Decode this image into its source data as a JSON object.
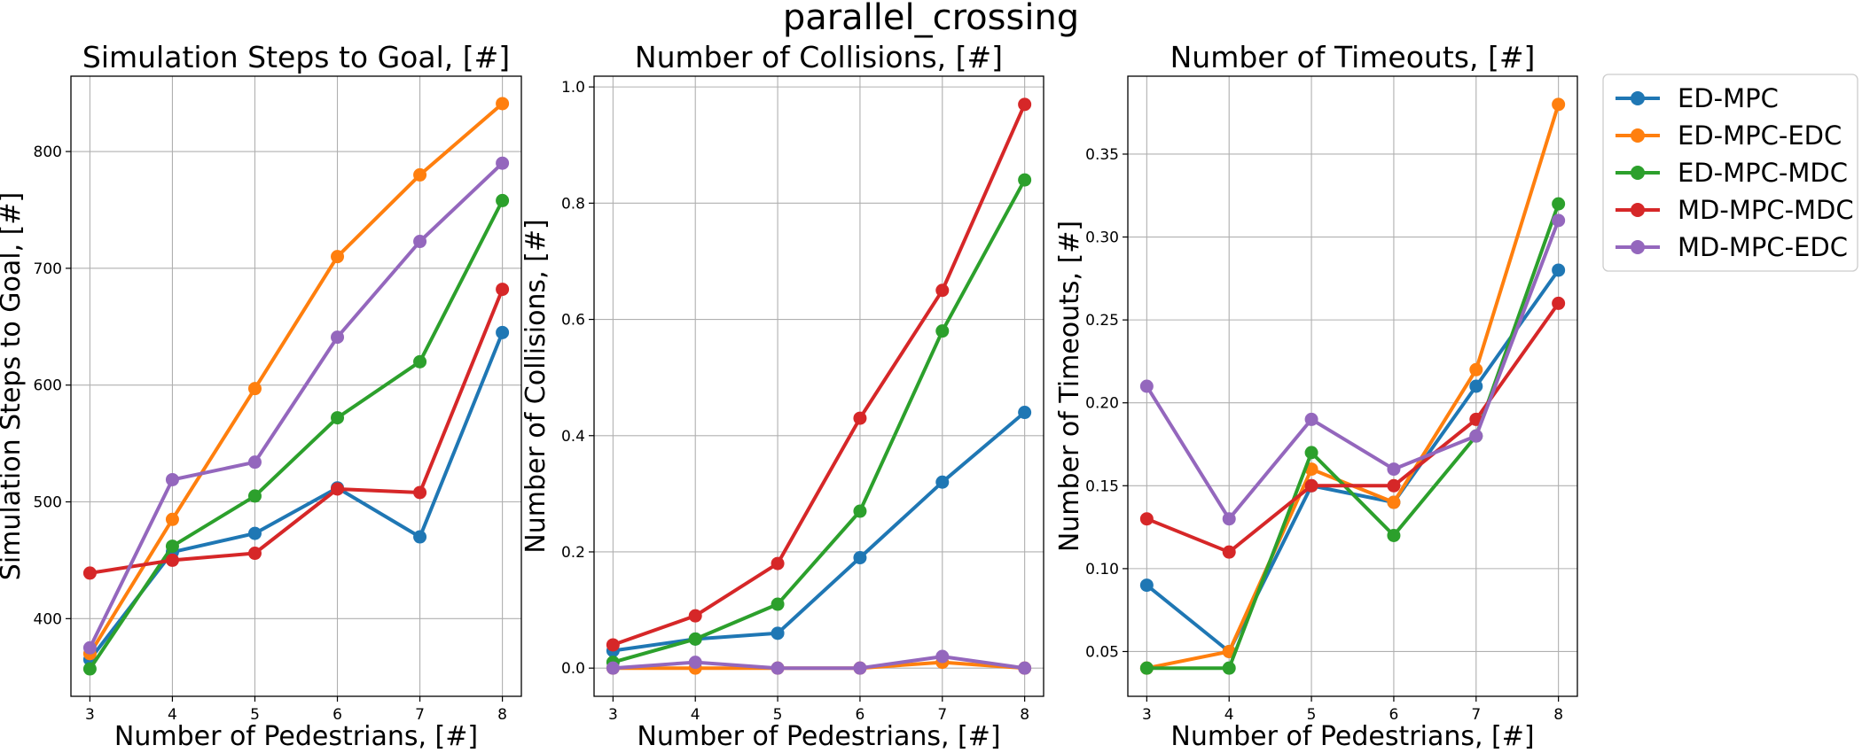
{
  "figure_title": "parallel_crossing",
  "colors": {
    "ED-MPC": "#1f77b4",
    "ED-MPC-EDC": "#ff7f0e",
    "ED-MPC-MDC": "#2ca02c",
    "MD-MPC-MDC": "#d62728",
    "MD-MPC-EDC": "#9467bd"
  },
  "legend": {
    "placement": "outside-top-right",
    "entries": [
      "ED-MPC",
      "ED-MPC-EDC",
      "ED-MPC-MDC",
      "MD-MPC-MDC",
      "MD-MPC-EDC"
    ]
  },
  "chart_data": [
    {
      "type": "line",
      "title": "Simulation Steps to Goal, [#]",
      "xlabel": "Number of Pedestrians, [#]",
      "ylabel": "Simulation Steps to Goal, [#]",
      "x": [
        3,
        4,
        5,
        6,
        7,
        8
      ],
      "xlim": [
        2.77,
        8.23
      ],
      "ylim": [
        333.5,
        864.5
      ],
      "yticks": [
        400,
        500,
        600,
        700,
        800
      ],
      "ytick_labels": [
        "400",
        "500",
        "600",
        "700",
        "800"
      ],
      "grid": true,
      "series": [
        {
          "name": "ED-MPC",
          "values": [
            365,
            457,
            473,
            512,
            470,
            645
          ]
        },
        {
          "name": "ED-MPC-EDC",
          "values": [
            370,
            485,
            597,
            710,
            780,
            841
          ]
        },
        {
          "name": "ED-MPC-MDC",
          "values": [
            357,
            462,
            505,
            572,
            620,
            758
          ]
        },
        {
          "name": "MD-MPC-MDC",
          "values": [
            439,
            450,
            456,
            511,
            508,
            682
          ]
        },
        {
          "name": "MD-MPC-EDC",
          "values": [
            375,
            519,
            534,
            641,
            723,
            790
          ]
        }
      ]
    },
    {
      "type": "line",
      "title": "Number of Collisions, [#]",
      "xlabel": "Number of Pedestrians, [#]",
      "ylabel": "Number of Collisions, [#]",
      "x": [
        3,
        4,
        5,
        6,
        7,
        8
      ],
      "xlim": [
        2.77,
        8.23
      ],
      "ylim": [
        -0.0485,
        1.0185
      ],
      "yticks": [
        0.0,
        0.2,
        0.4,
        0.6,
        0.8,
        1.0
      ],
      "ytick_labels": [
        "0.0",
        "0.2",
        "0.4",
        "0.6",
        "0.8",
        "1.0"
      ],
      "grid": true,
      "series": [
        {
          "name": "ED-MPC",
          "values": [
            0.03,
            0.05,
            0.06,
            0.19,
            0.32,
            0.44
          ]
        },
        {
          "name": "ED-MPC-EDC",
          "values": [
            0.0,
            0.0,
            0.0,
            0.0,
            0.01,
            0.0
          ]
        },
        {
          "name": "ED-MPC-MDC",
          "values": [
            0.01,
            0.05,
            0.11,
            0.27,
            0.58,
            0.84
          ]
        },
        {
          "name": "MD-MPC-MDC",
          "values": [
            0.04,
            0.09,
            0.18,
            0.43,
            0.65,
            0.97
          ]
        },
        {
          "name": "MD-MPC-EDC",
          "values": [
            0.0,
            0.01,
            0.0,
            0.0,
            0.02,
            0.0
          ]
        }
      ]
    },
    {
      "type": "line",
      "title": "Number of Timeouts, [#]",
      "xlabel": "Number of Pedestrians, [#]",
      "ylabel": "Number of Timeouts, [#]",
      "x": [
        3,
        4,
        5,
        6,
        7,
        8
      ],
      "xlim": [
        2.77,
        8.23
      ],
      "ylim": [
        0.023,
        0.397
      ],
      "yticks": [
        0.05,
        0.1,
        0.15,
        0.2,
        0.25,
        0.3,
        0.35
      ],
      "ytick_labels": [
        "0.05",
        "0.10",
        "0.15",
        "0.20",
        "0.25",
        "0.30",
        "0.35"
      ],
      "grid": true,
      "series": [
        {
          "name": "ED-MPC",
          "values": [
            0.09,
            0.05,
            0.15,
            0.14,
            0.21,
            0.28
          ]
        },
        {
          "name": "ED-MPC-EDC",
          "values": [
            0.04,
            0.05,
            0.16,
            0.14,
            0.22,
            0.38
          ]
        },
        {
          "name": "ED-MPC-MDC",
          "values": [
            0.04,
            0.04,
            0.17,
            0.12,
            0.18,
            0.32
          ]
        },
        {
          "name": "MD-MPC-MDC",
          "values": [
            0.13,
            0.11,
            0.15,
            0.15,
            0.19,
            0.26
          ]
        },
        {
          "name": "MD-MPC-EDC",
          "values": [
            0.21,
            0.13,
            0.19,
            0.16,
            0.18,
            0.31
          ]
        }
      ]
    }
  ]
}
